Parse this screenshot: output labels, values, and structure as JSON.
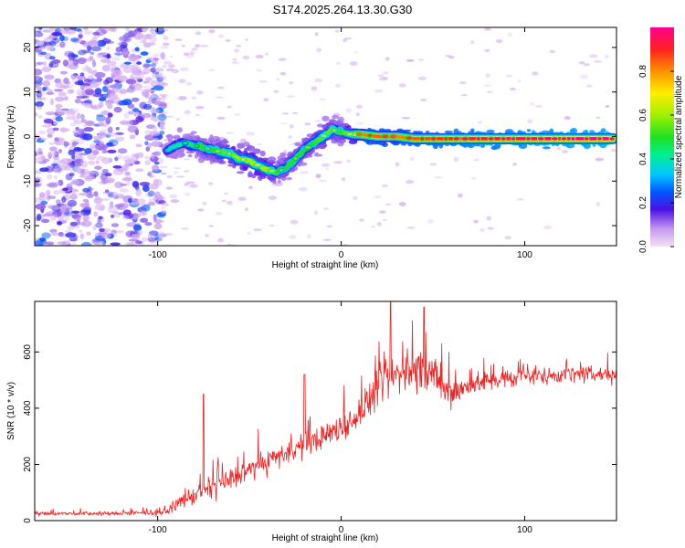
{
  "title": "S174.2025.264.13.30.G30",
  "chart_data": [
    {
      "type": "heatmap",
      "name": "spectrogram",
      "xlabel": "Height of straight line (km)",
      "ylabel": "Frequency (Hz)",
      "xlim": [
        -167,
        150
      ],
      "ylim": [
        -24.5,
        24.5
      ],
      "xticks": [
        -100,
        0,
        100
      ],
      "yticks": [
        -20,
        -10,
        0,
        10,
        20
      ],
      "colorbar": {
        "label": "Normalized spectral amplitude",
        "range": [
          0,
          1
        ],
        "ticks": [
          0.0,
          0.2,
          0.4,
          0.6,
          0.8
        ]
      },
      "ridge": {
        "x": [
          -95,
          -90,
          -85,
          -80,
          -75,
          -70,
          -65,
          -60,
          -55,
          -50,
          -45,
          -40,
          -35,
          -30,
          -25,
          -20,
          -15,
          -10,
          -5,
          0,
          5,
          10,
          20,
          30,
          40,
          60,
          80,
          100,
          120,
          148
        ],
        "frequency": [
          -3,
          -2,
          -1.5,
          -2,
          -2.5,
          -3,
          -3.5,
          -4,
          -5,
          -5.5,
          -6.5,
          -7.5,
          -8,
          -7,
          -5,
          -3,
          -1.5,
          0,
          1.5,
          1,
          0.5,
          0.5,
          0,
          0,
          -0.5,
          -0.5,
          -0.5,
          -0.5,
          -0.5,
          -0.5
        ],
        "amplitude": [
          0.35,
          0.4,
          0.4,
          0.45,
          0.5,
          0.5,
          0.55,
          0.55,
          0.6,
          0.6,
          0.6,
          0.6,
          0.5,
          0.5,
          0.5,
          0.5,
          0.5,
          0.55,
          0.55,
          0.5,
          0.6,
          0.8,
          0.85,
          0.8,
          0.85,
          0.9,
          0.95,
          0.95,
          1.0,
          1.0
        ]
      },
      "noise_region_x": [
        -167,
        -97
      ]
    },
    {
      "type": "line",
      "name": "snr",
      "xlabel": "Height of straight line (km)",
      "ylabel": "SNR (10 * v/v)",
      "xlim": [
        -167,
        150
      ],
      "ylim": [
        0,
        780
      ],
      "xticks": [
        -100,
        0,
        100
      ],
      "yticks": [
        0,
        200,
        400,
        600
      ],
      "color": "#ee2222",
      "envelope": {
        "x": [
          -167,
          -120,
          -95,
          -90,
          -80,
          -70,
          -60,
          -50,
          -40,
          -30,
          -20,
          -10,
          0,
          10,
          15,
          20,
          25,
          30,
          40,
          50,
          55,
          60,
          70,
          80,
          100,
          120,
          150
        ],
        "baseline": [
          25,
          25,
          30,
          60,
          90,
          120,
          150,
          180,
          210,
          240,
          270,
          300,
          330,
          380,
          430,
          470,
          500,
          520,
          540,
          520,
          470,
          450,
          480,
          500,
          510,
          520,
          520
        ],
        "spread": [
          10,
          10,
          15,
          30,
          50,
          60,
          60,
          60,
          60,
          60,
          60,
          65,
          70,
          80,
          90,
          100,
          110,
          110,
          110,
          100,
          90,
          80,
          60,
          50,
          45,
          45,
          45
        ]
      },
      "peaks": [
        {
          "x": -75,
          "y": 450
        },
        {
          "x": -20,
          "y": 520
        },
        {
          "x": 27,
          "y": 780
        },
        {
          "x": 45,
          "y": 760
        }
      ]
    }
  ]
}
